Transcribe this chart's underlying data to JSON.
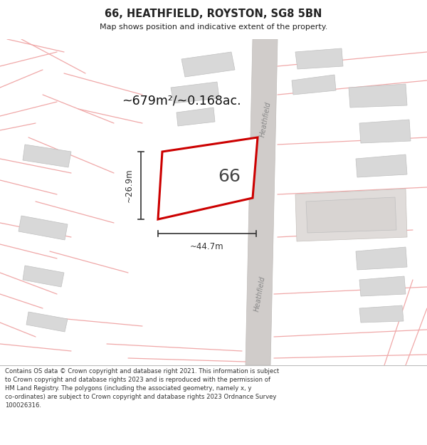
{
  "title_line1": "66, HEATHFIELD, ROYSTON, SG8 5BN",
  "title_line2": "Map shows position and indicative extent of the property.",
  "area_text": "~679m²/~0.168ac.",
  "number_label": "66",
  "dim_width": "~44.7m",
  "dim_height": "~26.9m",
  "road_label_1": "Heathfield",
  "road_label_2": "Heathfield",
  "footer_text": "Contains OS data © Crown copyright and database right 2021. This information is subject to Crown copyright and database rights 2023 and is reproduced with the permission of HM Land Registry. The polygons (including the associated geometry, namely x, y co-ordinates) are subject to Crown copyright and database rights 2023 Ordnance Survey 100026316.",
  "map_bg": "#ffffff",
  "building_fill": "#d8d8d8",
  "building_edge": "#c0c0c0",
  "road_fill": "#d0ceca",
  "road_edge": "#c0bbb7",
  "plot_stroke": "#cc0000",
  "plot_fill": "#ffffff",
  "dim_color": "#333333",
  "title_color": "#222222",
  "area_color": "#111111",
  "pink_line": "#f0a8a8",
  "road_label_color": "#888888",
  "footer_text_color": "#333333"
}
